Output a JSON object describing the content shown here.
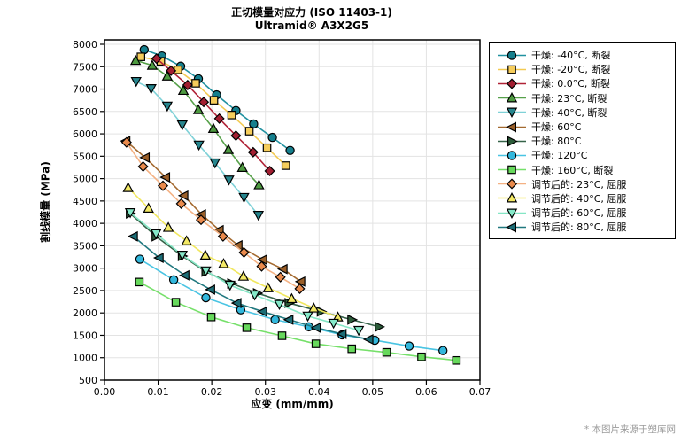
{
  "footer": {
    "text": "* 本图片来源于塑库网"
  },
  "chart_data": {
    "type": "line",
    "title": "正切模量对应力 (ISO 11403-1)",
    "subtitle": "Ultramid® A3X2G5",
    "xlabel": "应变 (mm/mm)",
    "ylabel": "割线模量 (MPa)",
    "xlim": [
      0,
      0.07
    ],
    "ylim": [
      500,
      8000
    ],
    "xticks": [
      0,
      0.01,
      0.02,
      0.03,
      0.04,
      0.05,
      0.06,
      0.07
    ],
    "yticks": [
      500,
      1000,
      1500,
      2000,
      2500,
      3000,
      3500,
      4000,
      4500,
      5000,
      5500,
      6000,
      6500,
      7000,
      7500,
      8000
    ],
    "grid": true,
    "grid_color": "#e3e3e3",
    "axis_color": "#000000",
    "legend_position": "right-outside",
    "series": [
      {
        "name": "干燥: -40°C, 断裂",
        "marker": "circle",
        "marker_color": "#157f8d",
        "line_color": "#2191a0",
        "x": [
          0.0074,
          0.0107,
          0.0142,
          0.0175,
          0.0209,
          0.0245,
          0.0278,
          0.0313,
          0.0346
        ],
        "y": [
          7880,
          7740,
          7510,
          7230,
          6870,
          6520,
          6220,
          5920,
          5630
        ]
      },
      {
        "name": "干燥: -20°C, 断裂",
        "marker": "square",
        "marker_color": "#f6cd5b",
        "line_color": "#f3ca52",
        "x": [
          0.0068,
          0.0105,
          0.0137,
          0.017,
          0.0204,
          0.0237,
          0.027,
          0.0303,
          0.0338
        ],
        "y": [
          7720,
          7620,
          7430,
          7130,
          6750,
          6420,
          6060,
          5690,
          5290
        ]
      },
      {
        "name": "干燥: 0.0°C, 断裂",
        "marker": "diamond",
        "marker_color": "#a21e31",
        "line_color": "#b02337",
        "x": [
          0.0097,
          0.0124,
          0.0155,
          0.0185,
          0.0214,
          0.0245,
          0.0277,
          0.0308
        ],
        "y": [
          7680,
          7410,
          7090,
          6710,
          6340,
          5960,
          5590,
          5170
        ]
      },
      {
        "name": "干燥: 23°C, 断裂",
        "marker": "triangle-up",
        "marker_color": "#4d9a40",
        "line_color": "#57a14a",
        "x": [
          0.0058,
          0.0089,
          0.0117,
          0.0147,
          0.0175,
          0.0203,
          0.0231,
          0.0257,
          0.0288
        ],
        "y": [
          7640,
          7530,
          7290,
          6970,
          6540,
          6120,
          5650,
          5250,
          4860
        ]
      },
      {
        "name": "干燥: 40°C, 断裂",
        "marker": "triangle-down",
        "marker_color": "#26868e",
        "line_color": "#7fd1d7",
        "x": [
          0.0059,
          0.0087,
          0.0117,
          0.0145,
          0.0176,
          0.0206,
          0.0232,
          0.026,
          0.0287
        ],
        "y": [
          7170,
          7010,
          6620,
          6200,
          5750,
          5350,
          4970,
          4580,
          4180
        ]
      },
      {
        "name": "干燥: 60°C",
        "marker": "triangle-left",
        "marker_color": "#9a5f29",
        "line_color": "#a46a30",
        "x": [
          0.004,
          0.0076,
          0.0114,
          0.0148,
          0.0181,
          0.0214,
          0.0249,
          0.0295,
          0.0333,
          0.0366
        ],
        "y": [
          5840,
          5470,
          5030,
          4620,
          4200,
          3850,
          3510,
          3190,
          2980,
          2700
        ]
      },
      {
        "name": "干燥: 80°C",
        "marker": "triangle-right",
        "marker_color": "#2c5c3a",
        "line_color": "#366349",
        "x": [
          0.0048,
          0.0096,
          0.0145,
          0.0189,
          0.0237,
          0.0285,
          0.0344,
          0.0404,
          0.0461,
          0.0512
        ],
        "y": [
          4220,
          3710,
          3270,
          2920,
          2660,
          2440,
          2220,
          2030,
          1850,
          1690
        ]
      },
      {
        "name": "干燥: 120°C",
        "marker": "circle",
        "marker_color": "#32b7dc",
        "line_color": "#49c4e3",
        "x": [
          0.0066,
          0.0129,
          0.0189,
          0.0254,
          0.0318,
          0.0381,
          0.0443,
          0.0504,
          0.0568,
          0.0631
        ],
        "y": [
          3200,
          2740,
          2340,
          2070,
          1850,
          1690,
          1510,
          1390,
          1260,
          1160
        ]
      },
      {
        "name": "干燥: 160°C, 断裂",
        "marker": "square",
        "marker_color": "#67d95c",
        "line_color": "#76e06a",
        "x": [
          0.0065,
          0.0133,
          0.0199,
          0.0265,
          0.0331,
          0.0394,
          0.0461,
          0.0526,
          0.0591,
          0.0656
        ],
        "y": [
          2690,
          2240,
          1910,
          1670,
          1490,
          1310,
          1200,
          1120,
          1020,
          940
        ]
      },
      {
        "name": "调节后的: 23°C, 屈服",
        "marker": "diamond",
        "marker_color": "#e98a4c",
        "line_color": "#f4b183",
        "x": [
          0.0041,
          0.0072,
          0.0109,
          0.0143,
          0.018,
          0.0221,
          0.026,
          0.0293,
          0.0328,
          0.0364
        ],
        "y": [
          5810,
          5270,
          4840,
          4440,
          4080,
          3710,
          3350,
          3040,
          2800,
          2540
        ]
      },
      {
        "name": "调节后的: 40°C, 屈服",
        "marker": "triangle-up",
        "marker_color": "#f3e965",
        "line_color": "#f1e75e",
        "x": [
          0.0044,
          0.0082,
          0.0119,
          0.0153,
          0.0188,
          0.0222,
          0.0259,
          0.0305,
          0.0349,
          0.039,
          0.0435
        ],
        "y": [
          4800,
          4340,
          3910,
          3610,
          3290,
          3100,
          2820,
          2560,
          2320,
          2110,
          1910
        ]
      },
      {
        "name": "调节后的: 60°C, 屈服",
        "marker": "triangle-down",
        "marker_color": "#85e9c9",
        "line_color": "#84e6c5",
        "x": [
          0.0048,
          0.0096,
          0.0145,
          0.0189,
          0.0234,
          0.028,
          0.0326,
          0.0379,
          0.0427,
          0.0474
        ],
        "y": [
          4240,
          3770,
          3290,
          2940,
          2620,
          2400,
          2190,
          1930,
          1770,
          1610
        ]
      },
      {
        "name": "调节后的: 80°C, 屈服",
        "marker": "triangle-left",
        "marker_color": "#1c6d76",
        "line_color": "#20787f",
        "x": [
          0.0054,
          0.0102,
          0.015,
          0.0198,
          0.0247,
          0.0295,
          0.0344,
          0.0395,
          0.0443,
          0.0493
        ],
        "y": [
          3710,
          3230,
          2840,
          2520,
          2220,
          2030,
          1850,
          1670,
          1530,
          1410
        ]
      }
    ]
  }
}
